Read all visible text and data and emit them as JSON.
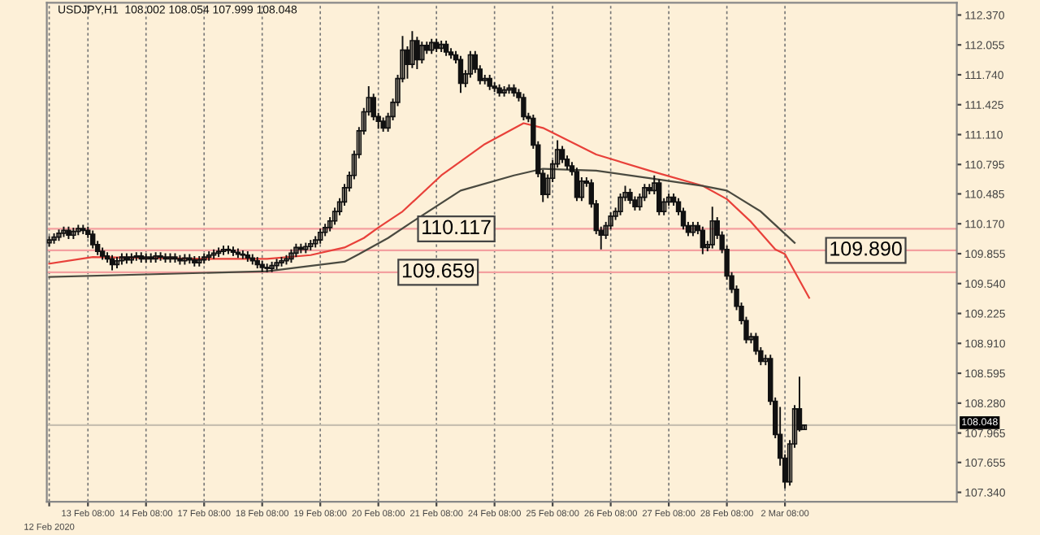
{
  "chart_data": {
    "type": "candlestick",
    "title": "USDJPY,H1  108.002 108.054 107.999 108.048",
    "ylim": [
      107.24,
      112.5
    ],
    "categories": [
      "12 Feb 2020",
      null,
      null,
      null,
      null,
      null,
      null,
      null,
      "13 Feb 08:00",
      null,
      null,
      null,
      null,
      null,
      null,
      null,
      null,
      null,
      null,
      null,
      "14 Feb 08:00",
      null,
      null,
      null,
      null,
      null,
      null,
      null,
      null,
      null,
      null,
      null,
      "17 Feb 08:00",
      null,
      null,
      null,
      null,
      null,
      null,
      null,
      null,
      null,
      null,
      null,
      "18 Feb 08:00",
      null,
      null,
      null,
      null,
      null,
      null,
      null,
      null,
      null,
      null,
      null,
      "19 Feb 08:00",
      null,
      null,
      null,
      null,
      null,
      null,
      null,
      null,
      null,
      null,
      null,
      "20 Feb 08:00",
      null,
      null,
      null,
      null,
      null,
      null,
      null,
      null,
      null,
      null,
      null,
      "21 Feb 08:00",
      null,
      null,
      null,
      null,
      null,
      null,
      null,
      null,
      null,
      null,
      null,
      "24 Feb 08:00",
      null,
      null,
      null,
      null,
      null,
      null,
      null,
      null,
      null,
      null,
      null,
      "25 Feb 08:00",
      null,
      null,
      null,
      null,
      null,
      null,
      null,
      null,
      null,
      null,
      null,
      "26 Feb 08:00",
      null,
      null,
      null,
      null,
      null,
      null,
      null,
      null,
      null,
      null,
      null,
      "27 Feb 08:00",
      null,
      null,
      null,
      null,
      null,
      null,
      null,
      null,
      null,
      null,
      null,
      "28 Feb 08:00",
      null,
      null,
      null,
      null,
      null,
      null,
      null,
      null,
      null,
      null,
      null,
      "2 Mar 08:00",
      null,
      null,
      null,
      null,
      null,
      null,
      null,
      null,
      null,
      null,
      null,
      null,
      null,
      null,
      null,
      null,
      null,
      null,
      null,
      null,
      null,
      null,
      null,
      null,
      null,
      null,
      null,
      null,
      null,
      null,
      null,
      null,
      null,
      null,
      null
    ],
    "yticks": [
      {
        "value": 112.37,
        "label": "112.370"
      },
      {
        "value": 112.055,
        "label": "112.055"
      },
      {
        "value": 111.74,
        "label": "111.740"
      },
      {
        "value": 111.425,
        "label": "111.425"
      },
      {
        "value": 111.11,
        "label": "111.110"
      },
      {
        "value": 110.795,
        "label": "110.795"
      },
      {
        "value": 110.485,
        "label": "110.485"
      },
      {
        "value": 110.17,
        "label": "110.170"
      },
      {
        "value": 109.855,
        "label": "109.855"
      },
      {
        "value": 109.54,
        "label": "109.540"
      },
      {
        "value": 109.225,
        "label": "109.225"
      },
      {
        "value": 108.91,
        "label": "108.910"
      },
      {
        "value": 108.595,
        "label": "108.595"
      },
      {
        "value": 108.28,
        "label": "108.280"
      },
      {
        "value": 107.965,
        "label": "107.965"
      },
      {
        "value": 107.655,
        "label": "107.655"
      },
      {
        "value": 107.34,
        "label": "107.340"
      }
    ],
    "grid": "x",
    "ref_lines": [
      {
        "axis": "y",
        "value": 110.117,
        "label": "110.117",
        "color": "#f4a0a0"
      },
      {
        "axis": "y",
        "value": 109.659,
        "label": "109.659",
        "color": "#f4a0a0"
      },
      {
        "axis": "y",
        "value": 109.89,
        "label": "109.890",
        "color": "#f4a0a0"
      },
      {
        "axis": "y",
        "value": 108.048,
        "label": "108.048",
        "color": "#c8c0b0"
      }
    ],
    "series": [
      {
        "color": "#111111",
        "ohlc": [
          [
            109.97,
            110.04,
            109.93,
            110.0
          ],
          [
            110.0,
            110.07,
            109.96,
            110.03
          ],
          [
            110.03,
            110.11,
            109.99,
            110.07
          ],
          [
            110.07,
            110.14,
            110.03,
            110.1
          ],
          [
            110.1,
            110.14,
            110.01,
            110.05
          ],
          [
            110.05,
            110.13,
            110.01,
            110.09
          ],
          [
            110.09,
            110.16,
            110.05,
            110.12
          ],
          [
            110.12,
            110.16,
            110.06,
            110.1
          ],
          [
            110.1,
            110.14,
            110.02,
            110.06
          ],
          [
            110.06,
            110.1,
            109.91,
            109.95
          ],
          [
            109.95,
            109.99,
            109.84,
            109.88
          ],
          [
            109.88,
            109.92,
            109.79,
            109.83
          ],
          [
            109.83,
            109.87,
            109.76,
            109.8
          ],
          [
            109.8,
            109.84,
            109.68,
            109.74
          ],
          [
            109.74,
            109.82,
            109.7,
            109.78
          ],
          [
            109.78,
            109.86,
            109.74,
            109.82
          ],
          [
            109.82,
            109.86,
            109.75,
            109.79
          ],
          [
            109.79,
            109.86,
            109.75,
            109.82
          ],
          [
            109.82,
            109.87,
            109.78,
            109.83
          ],
          [
            109.83,
            109.87,
            109.76,
            109.8
          ],
          [
            109.8,
            109.86,
            109.76,
            109.82
          ],
          [
            109.82,
            109.86,
            109.76,
            109.8
          ],
          [
            109.8,
            109.87,
            109.76,
            109.83
          ],
          [
            109.83,
            109.87,
            109.78,
            109.82
          ],
          [
            109.82,
            109.86,
            109.76,
            109.8
          ],
          [
            109.8,
            109.86,
            109.76,
            109.82
          ],
          [
            109.82,
            109.86,
            109.76,
            109.8
          ],
          [
            109.8,
            109.84,
            109.74,
            109.78
          ],
          [
            109.78,
            109.85,
            109.74,
            109.81
          ],
          [
            109.81,
            109.85,
            109.75,
            109.79
          ],
          [
            109.79,
            109.83,
            109.72,
            109.76
          ],
          [
            109.76,
            109.83,
            109.72,
            109.79
          ],
          [
            109.79,
            109.86,
            109.75,
            109.82
          ],
          [
            109.82,
            109.88,
            109.78,
            109.84
          ],
          [
            109.84,
            109.9,
            109.8,
            109.86
          ],
          [
            109.86,
            109.92,
            109.82,
            109.88
          ],
          [
            109.88,
            109.94,
            109.84,
            109.9
          ],
          [
            109.9,
            109.94,
            109.85,
            109.89
          ],
          [
            109.89,
            109.93,
            109.83,
            109.87
          ],
          [
            109.87,
            109.91,
            109.81,
            109.85
          ],
          [
            109.85,
            109.89,
            109.8,
            109.84
          ],
          [
            109.84,
            109.88,
            109.77,
            109.81
          ],
          [
            109.81,
            109.85,
            109.74,
            109.78
          ],
          [
            109.78,
            109.82,
            109.7,
            109.74
          ],
          [
            109.74,
            109.78,
            109.66,
            109.71
          ],
          [
            109.71,
            109.75,
            109.66,
            109.7
          ],
          [
            109.7,
            109.77,
            109.66,
            109.73
          ],
          [
            109.73,
            109.8,
            109.69,
            109.76
          ],
          [
            109.76,
            109.82,
            109.72,
            109.78
          ],
          [
            109.78,
            109.84,
            109.74,
            109.8
          ],
          [
            109.8,
            109.9,
            109.76,
            109.86
          ],
          [
            109.86,
            109.96,
            109.82,
            109.92
          ],
          [
            109.92,
            109.96,
            109.86,
            109.9
          ],
          [
            109.9,
            109.97,
            109.86,
            109.93
          ],
          [
            109.93,
            110.0,
            109.89,
            109.96
          ],
          [
            109.96,
            110.04,
            109.92,
            110.0
          ],
          [
            110.0,
            110.12,
            109.96,
            110.08
          ],
          [
            110.08,
            110.17,
            110.04,
            110.13
          ],
          [
            110.13,
            110.24,
            110.09,
            110.2
          ],
          [
            110.2,
            110.34,
            110.16,
            110.3
          ],
          [
            110.3,
            110.44,
            110.26,
            110.4
          ],
          [
            110.4,
            110.59,
            110.36,
            110.55
          ],
          [
            110.55,
            110.72,
            110.51,
            110.68
          ],
          [
            110.68,
            110.94,
            110.64,
            110.9
          ],
          [
            110.9,
            111.19,
            110.86,
            111.15
          ],
          [
            111.15,
            111.39,
            111.11,
            111.35
          ],
          [
            111.35,
            111.62,
            111.31,
            111.5
          ],
          [
            111.5,
            111.54,
            111.26,
            111.3
          ],
          [
            111.3,
            111.34,
            111.17,
            111.25
          ],
          [
            111.25,
            111.29,
            111.14,
            111.18
          ],
          [
            111.18,
            111.34,
            111.14,
            111.3
          ],
          [
            111.3,
            111.49,
            111.26,
            111.45
          ],
          [
            111.45,
            111.74,
            111.41,
            111.7
          ],
          [
            111.7,
            112.15,
            111.66,
            112.0
          ],
          [
            112.0,
            112.04,
            111.7,
            111.85
          ],
          [
            111.85,
            112.2,
            111.81,
            112.1
          ],
          [
            112.1,
            112.14,
            111.8,
            111.9
          ],
          [
            111.9,
            112.09,
            111.86,
            112.05
          ],
          [
            112.05,
            112.09,
            111.96,
            112.0
          ],
          [
            112.0,
            112.12,
            111.96,
            112.08
          ],
          [
            112.08,
            112.12,
            111.98,
            112.02
          ],
          [
            112.02,
            112.1,
            111.98,
            112.06
          ],
          [
            112.06,
            112.1,
            111.94,
            111.98
          ],
          [
            111.98,
            112.02,
            111.91,
            111.95
          ],
          [
            111.95,
            111.99,
            111.86,
            111.9
          ],
          [
            111.9,
            111.94,
            111.55,
            111.65
          ],
          [
            111.65,
            111.79,
            111.61,
            111.75
          ],
          [
            111.75,
            111.99,
            111.71,
            111.95
          ],
          [
            111.95,
            111.99,
            111.76,
            111.8
          ],
          [
            111.8,
            111.84,
            111.64,
            111.68
          ],
          [
            111.68,
            111.74,
            111.64,
            111.7
          ],
          [
            111.7,
            111.74,
            111.58,
            111.62
          ],
          [
            111.62,
            111.66,
            111.56,
            111.6
          ],
          [
            111.6,
            111.64,
            111.51,
            111.55
          ],
          [
            111.55,
            111.62,
            111.51,
            111.58
          ],
          [
            111.58,
            111.64,
            111.54,
            111.6
          ],
          [
            111.6,
            111.64,
            111.51,
            111.55
          ],
          [
            111.55,
            111.59,
            111.46,
            111.5
          ],
          [
            111.5,
            111.54,
            111.26,
            111.3
          ],
          [
            111.3,
            111.34,
            111.24,
            111.28
          ],
          [
            111.28,
            111.32,
            110.96,
            111.0
          ],
          [
            111.0,
            111.04,
            110.66,
            110.7
          ],
          [
            110.7,
            110.74,
            110.4,
            110.48
          ],
          [
            110.48,
            110.69,
            110.44,
            110.65
          ],
          [
            110.65,
            110.84,
            110.61,
            110.8
          ],
          [
            110.8,
            111.05,
            110.76,
            110.95
          ],
          [
            110.95,
            110.99,
            110.81,
            110.85
          ],
          [
            110.85,
            110.89,
            110.74,
            110.78
          ],
          [
            110.78,
            110.82,
            110.68,
            110.72
          ],
          [
            110.72,
            110.76,
            110.41,
            110.45
          ],
          [
            110.45,
            110.66,
            110.41,
            110.62
          ],
          [
            110.62,
            110.66,
            110.56,
            110.6
          ],
          [
            110.6,
            110.64,
            110.34,
            110.38
          ],
          [
            110.38,
            110.42,
            110.06,
            110.1
          ],
          [
            110.1,
            110.14,
            109.9,
            110.05
          ],
          [
            110.05,
            110.19,
            110.01,
            110.15
          ],
          [
            110.15,
            110.29,
            110.11,
            110.25
          ],
          [
            110.25,
            110.34,
            110.21,
            110.3
          ],
          [
            110.3,
            110.49,
            110.26,
            110.45
          ],
          [
            110.45,
            110.57,
            110.41,
            110.5
          ],
          [
            110.5,
            110.54,
            110.38,
            110.42
          ],
          [
            110.42,
            110.46,
            110.31,
            110.35
          ],
          [
            110.35,
            110.49,
            110.31,
            110.45
          ],
          [
            110.45,
            110.59,
            110.41,
            110.55
          ],
          [
            110.55,
            110.59,
            110.48,
            110.52
          ],
          [
            110.52,
            110.68,
            110.48,
            110.6
          ],
          [
            110.6,
            110.64,
            110.26,
            110.3
          ],
          [
            110.3,
            110.44,
            110.26,
            110.4
          ],
          [
            110.4,
            110.49,
            110.36,
            110.45
          ],
          [
            110.45,
            110.49,
            110.36,
            110.4
          ],
          [
            110.4,
            110.44,
            110.26,
            110.3
          ],
          [
            110.3,
            110.34,
            110.11,
            110.15
          ],
          [
            110.15,
            110.19,
            110.04,
            110.08
          ],
          [
            110.08,
            110.19,
            110.04,
            110.15
          ],
          [
            110.15,
            110.19,
            110.06,
            110.1
          ],
          [
            110.1,
            110.14,
            109.85,
            109.92
          ],
          [
            109.92,
            109.99,
            109.88,
            109.95
          ],
          [
            109.95,
            110.35,
            109.91,
            110.2
          ],
          [
            110.2,
            110.24,
            110.01,
            110.05
          ],
          [
            110.05,
            110.09,
            109.86,
            109.9
          ],
          [
            109.9,
            109.94,
            109.58,
            109.62
          ],
          [
            109.62,
            109.66,
            109.44,
            109.48
          ],
          [
            109.48,
            109.52,
            109.26,
            109.3
          ],
          [
            109.3,
            109.34,
            109.11,
            109.15
          ],
          [
            109.15,
            109.19,
            108.91,
            108.95
          ],
          [
            108.95,
            109.02,
            108.91,
            108.98
          ],
          [
            108.98,
            109.02,
            108.79,
            108.83
          ],
          [
            108.83,
            108.87,
            108.68,
            108.72
          ],
          [
            108.72,
            108.79,
            108.68,
            108.75
          ],
          [
            108.75,
            108.79,
            108.26,
            108.3
          ],
          [
            108.3,
            108.34,
            107.91,
            107.95
          ],
          [
            107.95,
            108.24,
            107.62,
            107.7
          ],
          [
            107.7,
            107.74,
            107.38,
            107.45
          ],
          [
            107.45,
            107.89,
            107.41,
            107.85
          ],
          [
            107.85,
            108.26,
            107.81,
            108.22
          ],
          [
            108.22,
            108.56,
            107.98,
            108.0
          ],
          [
            108.002,
            108.054,
            107.999,
            108.048
          ],
          null,
          null,
          null,
          null,
          null,
          null,
          null,
          null,
          null,
          null,
          null,
          null,
          null,
          null,
          null,
          null,
          null,
          null,
          null,
          null,
          null,
          null,
          null,
          null,
          null,
          null,
          null,
          null,
          null,
          null,
          null
        ]
      },
      {
        "type": "line",
        "color": "#e8413a",
        "values": [
          109.75,
          null,
          null,
          null,
          null,
          null,
          null,
          null,
          null,
          109.82,
          null,
          null,
          null,
          null,
          null,
          null,
          null,
          null,
          null,
          null,
          null,
          null,
          null,
          null,
          null,
          null,
          null,
          null,
          null,
          null,
          null,
          null,
          109.8,
          null,
          null,
          null,
          null,
          null,
          null,
          null,
          null,
          null,
          null,
          null,
          null,
          109.8,
          null,
          null,
          null,
          null,
          null,
          null,
          null,
          null,
          109.84,
          null,
          null,
          null,
          null,
          null,
          null,
          109.92,
          null,
          null,
          null,
          110.02,
          null,
          null,
          110.13,
          null,
          null,
          null,
          null,
          110.3,
          null,
          null,
          null,
          null,
          null,
          null,
          null,
          110.68,
          null,
          null,
          null,
          null,
          null,
          null,
          null,
          null,
          111.01,
          null,
          null,
          null,
          null,
          null,
          null,
          null,
          111.23,
          null,
          null,
          null,
          111.18,
          null,
          null,
          null,
          null,
          null,
          null,
          null,
          null,
          null,
          null,
          110.9,
          null,
          null,
          null,
          null,
          null,
          null,
          null,
          null,
          null,
          null,
          110.73,
          null,
          null,
          null,
          null,
          null,
          null,
          null,
          null,
          null,
          null,
          110.57,
          null,
          null,
          null,
          null,
          110.43,
          null,
          null,
          null,
          null,
          110.19,
          null,
          null,
          null,
          null,
          109.9,
          null,
          109.85,
          null,
          null,
          null,
          null,
          109.39,
          null,
          null,
          null,
          null,
          null,
          null,
          null,
          null,
          null,
          null,
          null,
          null,
          null,
          null,
          null,
          null,
          null,
          null,
          null,
          null,
          null,
          null,
          null,
          null,
          null,
          null,
          null,
          null,
          null,
          null
        ]
      },
      {
        "type": "line",
        "color": "#4a4a40",
        "values": [
          109.61,
          null,
          null,
          null,
          null,
          null,
          null,
          null,
          null,
          null,
          null,
          null,
          null,
          null,
          null,
          null,
          null,
          null,
          null,
          null,
          null,
          null,
          null,
          null,
          null,
          null,
          null,
          null,
          null,
          null,
          null,
          null,
          null,
          null,
          null,
          null,
          null,
          null,
          null,
          null,
          null,
          null,
          null,
          null,
          null,
          109.67,
          null,
          null,
          null,
          null,
          null,
          null,
          null,
          null,
          null,
          null,
          null,
          null,
          null,
          null,
          null,
          109.77,
          null,
          null,
          109.85,
          null,
          null,
          null,
          null,
          null,
          110.02,
          null,
          null,
          null,
          null,
          110.19,
          null,
          null,
          null,
          null,
          null,
          null,
          null,
          null,
          null,
          110.52,
          null,
          null,
          null,
          null,
          null,
          null,
          null,
          null,
          null,
          null,
          110.68,
          null,
          null,
          null,
          null,
          null,
          110.75,
          null,
          null,
          null,
          null,
          null,
          null,
          null,
          null,
          null,
          null,
          110.73,
          null,
          null,
          null,
          null,
          null,
          null,
          null,
          null,
          null,
          null,
          110.65,
          null,
          null,
          null,
          null,
          null,
          null,
          null,
          null,
          null,
          null,
          110.57,
          null,
          null,
          null,
          null,
          110.52,
          null,
          null,
          null,
          null,
          null,
          null,
          110.3,
          null,
          null,
          null,
          null,
          null,
          null,
          109.97,
          null,
          null,
          null,
          null,
          null,
          null,
          null,
          null,
          null,
          null,
          null,
          null,
          null,
          null,
          null,
          null,
          null,
          null,
          null,
          null,
          null,
          null,
          null,
          null,
          null,
          null,
          null,
          null,
          null,
          null,
          null,
          null,
          null
        ]
      }
    ]
  }
}
